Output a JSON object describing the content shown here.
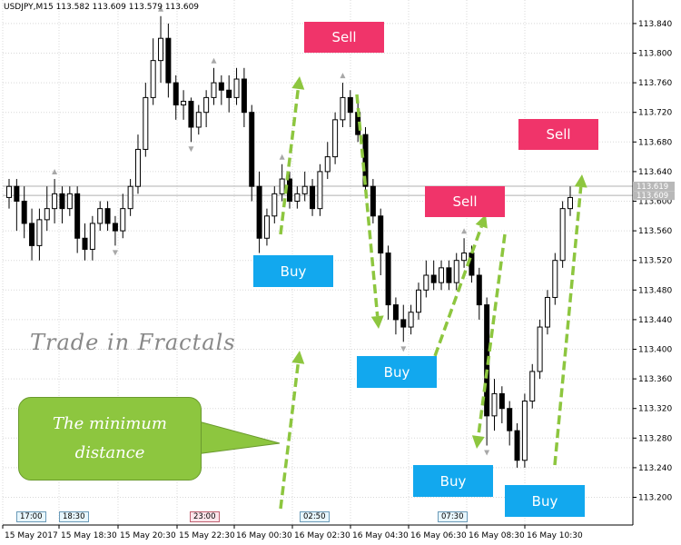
{
  "header": {
    "symbol": "USDJPY,M15",
    "ohlc": "113.582 113.609 113.579 113.609"
  },
  "signals": {
    "sell": [
      "Sell",
      "Sell",
      "Sell"
    ],
    "buy": [
      "Buy",
      "Buy",
      "Buy",
      "Buy"
    ]
  },
  "annotations": {
    "title": "Trade in Fractals",
    "callout_line1": "The minimum",
    "callout_line2": "distance"
  },
  "time_labels": [
    "17:00",
    "18:30",
    "23:00",
    "02:50",
    "07:30"
  ],
  "colors": {
    "sell": "#f0346a",
    "buy": "#12a8ee",
    "arrow": "#8dc63f",
    "callout": "#8dc63f"
  },
  "chart_data": {
    "type": "candlestick",
    "symbol": "USDJPY",
    "timeframe": "M15",
    "ylim": [
      113.18,
      113.88
    ],
    "y_ticks": [
      "113.840",
      "113.800",
      "113.760",
      "113.720",
      "113.680",
      "113.640",
      "113.600",
      "113.560",
      "113.520",
      "113.480",
      "113.440",
      "113.400",
      "113.360",
      "113.320",
      "113.280",
      "113.240",
      "113.200"
    ],
    "x_ticks": [
      "15 May 2017",
      "15 May 18:30",
      "15 May 20:30",
      "15 May 22:30",
      "16 May 00:30",
      "16 May 02:30",
      "16 May 04:30",
      "16 May 06:30",
      "16 May 08:30",
      "16 May 10:30"
    ],
    "current_prices": [
      "113.619",
      "113.609"
    ],
    "grid": true,
    "candles": [
      [
        113.605,
        113.62,
        113.63,
        113.59
      ],
      [
        113.62,
        113.6,
        113.63,
        113.56
      ],
      [
        113.6,
        113.57,
        113.62,
        113.55
      ],
      [
        113.57,
        113.54,
        113.59,
        113.52
      ],
      [
        113.54,
        113.575,
        113.59,
        113.52
      ],
      [
        113.575,
        113.59,
        113.62,
        113.56
      ],
      [
        113.59,
        113.61,
        113.63,
        113.57
      ],
      [
        113.61,
        113.59,
        113.62,
        113.57
      ],
      [
        113.59,
        113.61,
        113.62,
        113.58
      ],
      [
        113.61,
        113.55,
        113.62,
        113.53
      ],
      [
        113.55,
        113.535,
        113.57,
        113.52
      ],
      [
        113.535,
        113.57,
        113.58,
        113.52
      ],
      [
        113.57,
        113.59,
        113.6,
        113.56
      ],
      [
        113.59,
        113.57,
        113.6,
        113.56
      ],
      [
        113.57,
        113.56,
        113.58,
        113.54
      ],
      [
        113.56,
        113.59,
        113.61,
        113.55
      ],
      [
        113.59,
        113.62,
        113.63,
        113.58
      ],
      [
        113.62,
        113.67,
        113.69,
        113.61
      ],
      [
        113.67,
        113.74,
        113.76,
        113.66
      ],
      [
        113.74,
        113.79,
        113.82,
        113.73
      ],
      [
        113.79,
        113.82,
        113.85,
        113.76
      ],
      [
        113.82,
        113.76,
        113.84,
        113.74
      ],
      [
        113.76,
        113.73,
        113.77,
        113.71
      ],
      [
        113.73,
        113.735,
        113.75,
        113.71
      ],
      [
        113.735,
        113.7,
        113.74,
        113.68
      ],
      [
        113.7,
        113.72,
        113.73,
        113.69
      ],
      [
        113.72,
        113.74,
        113.75,
        113.7
      ],
      [
        113.74,
        113.76,
        113.78,
        113.73
      ],
      [
        113.76,
        113.75,
        113.77,
        113.73
      ],
      [
        113.75,
        113.74,
        113.77,
        113.72
      ],
      [
        113.74,
        113.765,
        113.78,
        113.73
      ],
      [
        113.765,
        113.72,
        113.78,
        113.7
      ],
      [
        113.72,
        113.62,
        113.73,
        113.6
      ],
      [
        113.62,
        113.55,
        113.64,
        113.53
      ],
      [
        113.55,
        113.58,
        113.59,
        113.54
      ],
      [
        113.58,
        113.61,
        113.62,
        113.57
      ],
      [
        113.61,
        113.63,
        113.65,
        113.6
      ],
      [
        113.63,
        113.6,
        113.64,
        113.59
      ],
      [
        113.6,
        113.61,
        113.62,
        113.59
      ],
      [
        113.61,
        113.62,
        113.64,
        113.6
      ],
      [
        113.62,
        113.59,
        113.63,
        113.58
      ],
      [
        113.59,
        113.64,
        113.65,
        113.58
      ],
      [
        113.64,
        113.66,
        113.68,
        113.63
      ],
      [
        113.66,
        113.71,
        113.72,
        113.65
      ],
      [
        113.71,
        113.74,
        113.76,
        113.7
      ],
      [
        113.74,
        113.72,
        113.75,
        113.7
      ],
      [
        113.72,
        113.69,
        113.74,
        113.68
      ],
      [
        113.69,
        113.62,
        113.7,
        113.61
      ],
      [
        113.62,
        113.58,
        113.63,
        113.57
      ],
      [
        113.58,
        113.53,
        113.59,
        113.5
      ],
      [
        113.53,
        113.46,
        113.54,
        113.44
      ],
      [
        113.46,
        113.44,
        113.47,
        113.42
      ],
      [
        113.44,
        113.43,
        113.46,
        113.41
      ],
      [
        113.43,
        113.45,
        113.46,
        113.42
      ],
      [
        113.45,
        113.48,
        113.49,
        113.44
      ],
      [
        113.48,
        113.5,
        113.52,
        113.47
      ],
      [
        113.5,
        113.49,
        113.52,
        113.48
      ],
      [
        113.49,
        113.51,
        113.52,
        113.48
      ],
      [
        113.51,
        113.49,
        113.52,
        113.48
      ],
      [
        113.49,
        113.52,
        113.53,
        113.48
      ],
      [
        113.52,
        113.53,
        113.55,
        113.51
      ],
      [
        113.53,
        113.5,
        113.54,
        113.49
      ],
      [
        113.5,
        113.46,
        113.51,
        113.44
      ],
      [
        113.46,
        113.31,
        113.47,
        113.27
      ],
      [
        113.31,
        113.34,
        113.36,
        113.29
      ],
      [
        113.34,
        113.32,
        113.35,
        113.3
      ],
      [
        113.32,
        113.29,
        113.33,
        113.27
      ],
      [
        113.29,
        113.25,
        113.3,
        113.24
      ],
      [
        113.25,
        113.33,
        113.34,
        113.24
      ],
      [
        113.33,
        113.37,
        113.38,
        113.32
      ],
      [
        113.37,
        113.43,
        113.44,
        113.36
      ],
      [
        113.43,
        113.47,
        113.48,
        113.42
      ],
      [
        113.47,
        113.52,
        113.53,
        113.46
      ],
      [
        113.52,
        113.59,
        113.6,
        113.51
      ],
      [
        113.59,
        113.605,
        113.62,
        113.58
      ]
    ]
  }
}
